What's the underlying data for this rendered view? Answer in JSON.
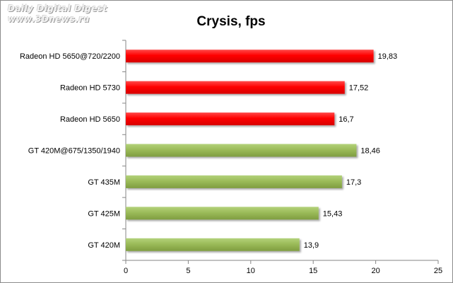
{
  "watermark": {
    "line1": "Daily Digital Digest",
    "line2": "www.3Dnews.ru"
  },
  "chart_data": {
    "type": "bar",
    "orientation": "horizontal",
    "title": "Crysis, fps",
    "xlabel": "",
    "ylabel": "",
    "xlim": [
      0,
      25
    ],
    "x_ticks": [
      0,
      5,
      10,
      15,
      20,
      25
    ],
    "grid": false,
    "legend": "none",
    "categories": [
      "Radeon HD 5650@720/2200",
      "Radeon HD 5730",
      "Radeon HD 5650",
      "GT 420M@675/1350/1940",
      "GT 435M",
      "GT 425M",
      "GT 420M"
    ],
    "values": [
      19.83,
      17.52,
      16.7,
      18.46,
      17.3,
      15.43,
      13.9
    ],
    "value_labels": [
      "19,83",
      "17,52",
      "16,7",
      "18,46",
      "17,3",
      "15,43",
      "13,9"
    ],
    "bar_colors": [
      "#ff0000",
      "#ff0000",
      "#ff0000",
      "#9bbb59",
      "#9bbb59",
      "#9bbb59",
      "#9bbb59"
    ]
  }
}
